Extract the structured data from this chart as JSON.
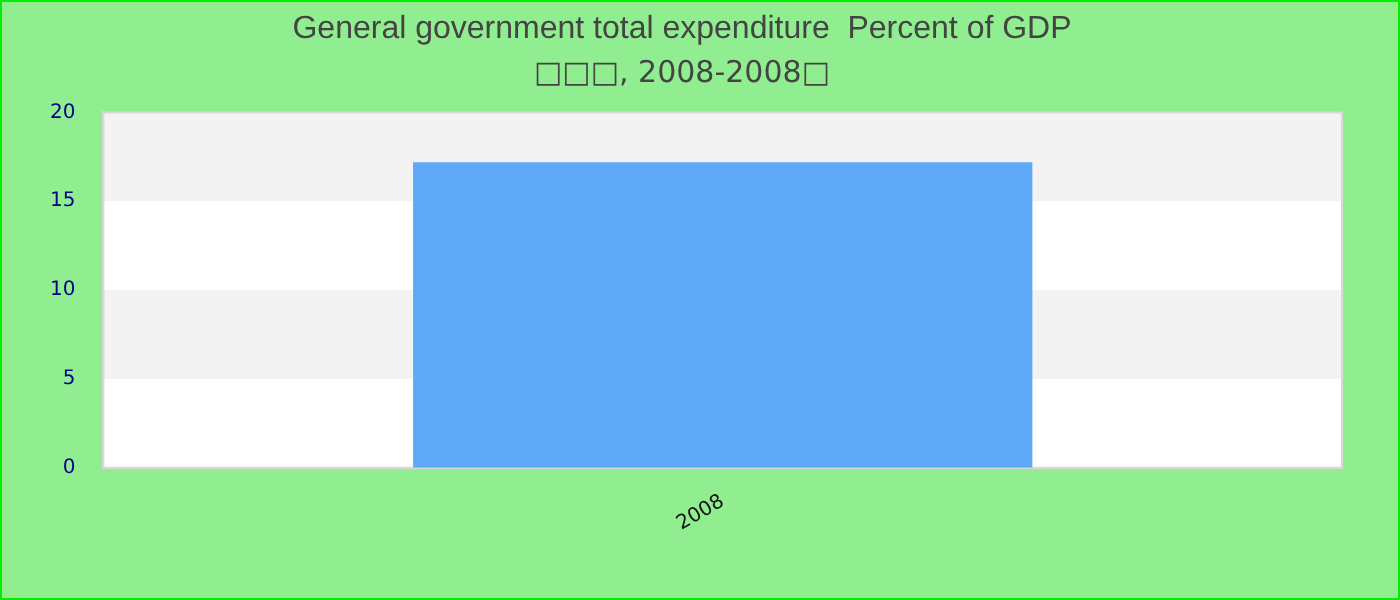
{
  "chart_data": {
    "type": "bar",
    "title": "General government total expenditure  Percent of GDP",
    "subtitle": "□□□, 2008-2008□",
    "categories": [
      "2008"
    ],
    "values": [
      17.2
    ],
    "color": "#60a9f6",
    "ylim": [
      0,
      20
    ],
    "yticks": [
      0,
      5,
      10,
      15,
      20
    ],
    "bands": [
      {
        "axis": "y",
        "from": 5,
        "to": 10,
        "color": "#f3f3f3"
      },
      {
        "axis": "y",
        "from": 15,
        "to": 20,
        "color": "#f3f3f3"
      }
    ]
  }
}
